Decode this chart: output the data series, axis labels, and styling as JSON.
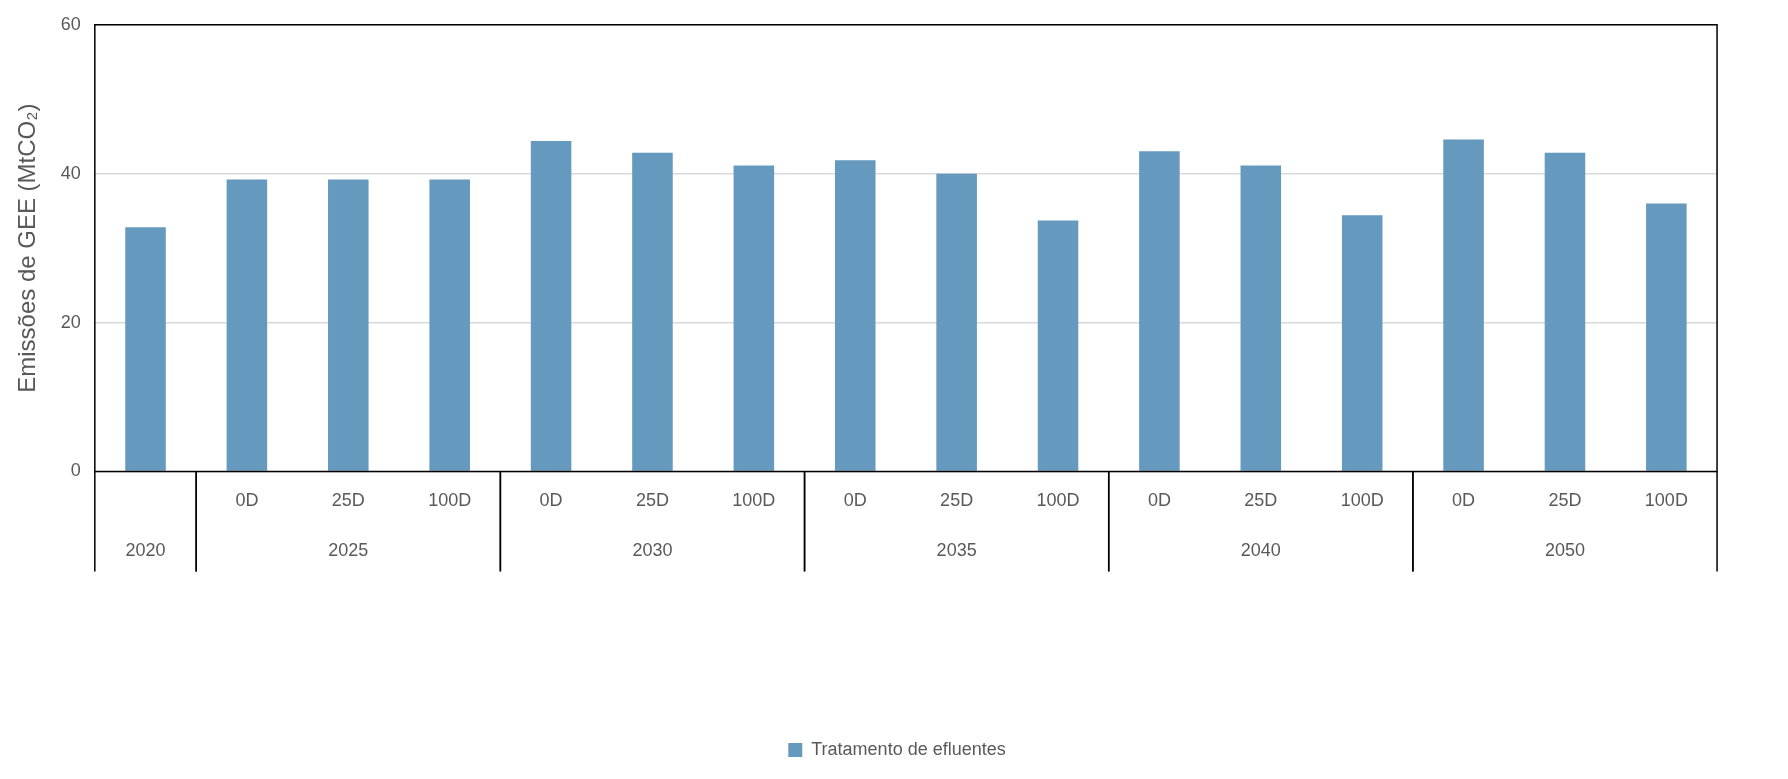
{
  "chart_data": {
    "type": "bar",
    "ylabel": "Emissões de GEE (MtCO₂)",
    "categories": [
      null,
      "0D",
      "25D",
      "100D",
      "0D",
      "25D",
      "100D",
      "0D",
      "25D",
      "100D",
      "0D",
      "25D",
      "100D",
      "0D",
      "25D",
      "100D"
    ],
    "annotations": [
      "2020",
      "2025",
      "2030",
      "2035",
      "2040",
      "2050"
    ],
    "series": [
      {
        "name": "Tratamento de efluentes",
        "color": "#6599bd",
        "values": [
          32.8,
          39.2,
          39.2,
          39.2,
          44.4,
          42.8,
          41.1,
          41.8,
          40.0,
          33.7,
          43.0,
          41.1,
          34.4,
          44.6,
          42.8,
          36.0
        ]
      }
    ],
    "ylim": [
      0,
      60
    ],
    "yticks": [
      0,
      20,
      40,
      60
    ],
    "grid": "y",
    "legend": "bottom"
  }
}
